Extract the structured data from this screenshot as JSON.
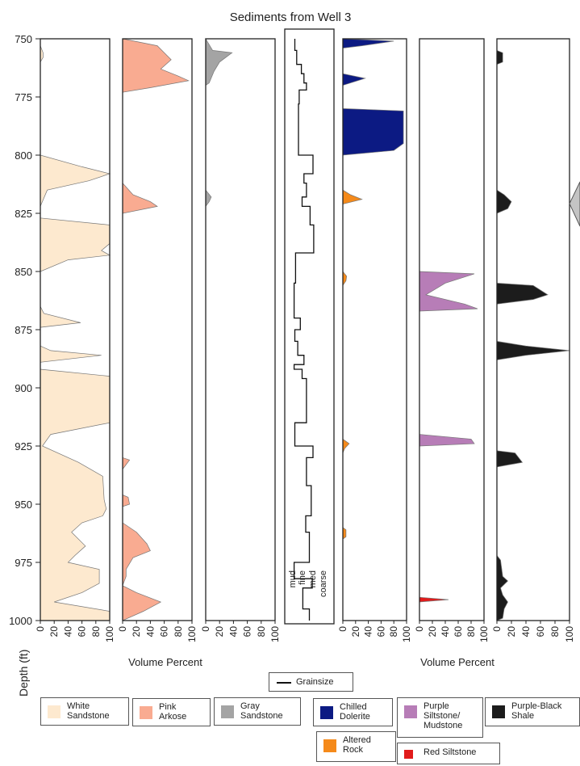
{
  "chart_data": {
    "type": "area",
    "title": "Sediments from Well 3",
    "ylabel": "Depth (ft)",
    "ylim": [
      750,
      1000
    ],
    "yticks": [
      "750",
      "775",
      "800",
      "825",
      "850",
      "875",
      "900",
      "925",
      "950",
      "975",
      "1000"
    ],
    "xlabel_left": "Volume Percent",
    "xlabel_right": "Volume Percent",
    "percent_ticks": [
      "0",
      "20",
      "40",
      "60",
      "80",
      "100"
    ],
    "grainsize_ticks": [
      "mud",
      "fine",
      "med",
      "coarse"
    ],
    "series": [
      {
        "name": "White Sandstone",
        "color": "#fde9cf",
        "points": [
          [
            750,
            0
          ],
          [
            753,
            0
          ],
          [
            756,
            4
          ],
          [
            758,
            4
          ],
          [
            760,
            0
          ],
          [
            800,
            0
          ],
          [
            805,
            60
          ],
          [
            808,
            100
          ],
          [
            811,
            70
          ],
          [
            815,
            10
          ],
          [
            822,
            0
          ],
          [
            827,
            0
          ],
          [
            830,
            100
          ],
          [
            838,
            100
          ],
          [
            841,
            88
          ],
          [
            843,
            100
          ],
          [
            845,
            40
          ],
          [
            850,
            0
          ],
          [
            865,
            0
          ],
          [
            868,
            5
          ],
          [
            872,
            58
          ],
          [
            874,
            0
          ],
          [
            882,
            0
          ],
          [
            884,
            15
          ],
          [
            886,
            88
          ],
          [
            889,
            0
          ],
          [
            892,
            0
          ],
          [
            895,
            100
          ],
          [
            915,
            100
          ],
          [
            920,
            15
          ],
          [
            925,
            3
          ],
          [
            932,
            55
          ],
          [
            938,
            90
          ],
          [
            948,
            92
          ],
          [
            952,
            95
          ],
          [
            955,
            90
          ],
          [
            958,
            60
          ],
          [
            962,
            45
          ],
          [
            968,
            65
          ],
          [
            972,
            50
          ],
          [
            975,
            40
          ],
          [
            978,
            85
          ],
          [
            984,
            85
          ],
          [
            988,
            60
          ],
          [
            992,
            20
          ],
          [
            996,
            100
          ],
          [
            1000,
            100
          ]
        ]
      },
      {
        "name": "Pink Arkose",
        "color": "#f9ab91",
        "points": [
          [
            750,
            0
          ],
          [
            753,
            50
          ],
          [
            756,
            60
          ],
          [
            759,
            70
          ],
          [
            763,
            55
          ],
          [
            766,
            80
          ],
          [
            768,
            95
          ],
          [
            771,
            40
          ],
          [
            773,
            0
          ],
          [
            812,
            0
          ],
          [
            817,
            15
          ],
          [
            820,
            40
          ],
          [
            822,
            50
          ],
          [
            825,
            0
          ],
          [
            930,
            0
          ],
          [
            931,
            10
          ],
          [
            933,
            5
          ],
          [
            935,
            0
          ],
          [
            946,
            0
          ],
          [
            947,
            8
          ],
          [
            950,
            10
          ],
          [
            951,
            0
          ],
          [
            958,
            0
          ],
          [
            962,
            20
          ],
          [
            967,
            35
          ],
          [
            970,
            40
          ],
          [
            973,
            15
          ],
          [
            978,
            5
          ],
          [
            981,
            5
          ],
          [
            985,
            0
          ],
          [
            988,
            20
          ],
          [
            992,
            55
          ],
          [
            996,
            30
          ],
          [
            1000,
            0
          ]
        ]
      },
      {
        "name": "Gray Sandstone",
        "color": "#a4a4a4",
        "points": [
          [
            750,
            0
          ],
          [
            755,
            10
          ],
          [
            756,
            38
          ],
          [
            760,
            20
          ],
          [
            764,
            12
          ],
          [
            769,
            5
          ],
          [
            770,
            0
          ],
          [
            815,
            0
          ],
          [
            818,
            8
          ],
          [
            820,
            5
          ],
          [
            822,
            0
          ]
        ]
      },
      {
        "name": "Chilled Dolerite",
        "color": "#0c1a83",
        "points": [
          [
            750,
            0
          ],
          [
            751,
            80
          ],
          [
            753,
            30
          ],
          [
            754,
            0
          ],
          [
            765,
            0
          ],
          [
            767,
            35
          ],
          [
            770,
            0
          ],
          [
            780,
            0
          ],
          [
            781,
            95
          ],
          [
            795,
            95
          ],
          [
            798,
            80
          ],
          [
            800,
            0
          ]
        ]
      },
      {
        "name": "Altered Rock",
        "color": "#f58a1a",
        "points": [
          [
            815,
            0
          ],
          [
            817,
            12
          ],
          [
            819,
            30
          ],
          [
            821,
            0
          ],
          [
            850,
            0
          ],
          [
            852,
            6
          ],
          [
            854,
            5
          ],
          [
            856,
            0
          ],
          [
            922,
            0
          ],
          [
            924,
            10
          ],
          [
            926,
            3
          ],
          [
            928,
            0
          ],
          [
            960,
            0
          ],
          [
            961,
            5
          ],
          [
            964,
            5
          ],
          [
            965,
            0
          ]
        ]
      },
      {
        "name": "Purple Siltstone/Mudstone",
        "color": "#b77db7",
        "points": [
          [
            850,
            0
          ],
          [
            851,
            85
          ],
          [
            855,
            40
          ],
          [
            860,
            10
          ],
          [
            864,
            70
          ],
          [
            866,
            90
          ],
          [
            867,
            0
          ],
          [
            920,
            0
          ],
          [
            922,
            80
          ],
          [
            924,
            85
          ],
          [
            925,
            0
          ]
        ]
      },
      {
        "name": "Red Siltstone",
        "color": "#e11b1b",
        "points": [
          [
            990,
            0
          ],
          [
            991,
            45
          ],
          [
            992,
            0
          ]
        ]
      },
      {
        "name": "Purple-Black Shale",
        "color": "#1c1c1c",
        "points": [
          [
            755,
            0
          ],
          [
            756,
            8
          ],
          [
            760,
            8
          ],
          [
            761,
            0
          ],
          [
            815,
            0
          ],
          [
            817,
            10
          ],
          [
            820,
            20
          ],
          [
            823,
            15
          ],
          [
            825,
            0
          ],
          [
            855,
            0
          ],
          [
            856,
            50
          ],
          [
            860,
            70
          ],
          [
            862,
            50
          ],
          [
            864,
            0
          ],
          [
            880,
            0
          ],
          [
            882,
            40
          ],
          [
            884,
            100
          ],
          [
            886,
            40
          ],
          [
            888,
            0
          ],
          [
            927,
            0
          ],
          [
            928,
            25
          ],
          [
            932,
            35
          ],
          [
            934,
            0
          ],
          [
            972,
            0
          ],
          [
            974,
            5
          ],
          [
            981,
            8
          ],
          [
            983,
            15
          ],
          [
            986,
            5
          ],
          [
            989,
            8
          ],
          [
            992,
            15
          ],
          [
            995,
            10
          ],
          [
            999,
            8
          ],
          [
            1000,
            0
          ]
        ]
      }
    ],
    "grainsize": {
      "name": "Grainsize",
      "profile": [
        [
          750,
          0.1
        ],
        [
          755,
          0.1
        ],
        [
          755,
          0.15
        ],
        [
          761,
          0.15
        ],
        [
          761,
          0.28
        ],
        [
          765,
          0.28
        ],
        [
          765,
          0.35
        ],
        [
          769,
          0.35
        ],
        [
          769,
          0.42
        ],
        [
          772,
          0.42
        ],
        [
          772,
          0.22
        ],
        [
          778,
          0.22
        ],
        [
          778,
          0.2
        ],
        [
          800,
          0.2
        ],
        [
          800,
          0.6
        ],
        [
          808,
          0.6
        ],
        [
          808,
          0.35
        ],
        [
          812,
          0.35
        ],
        [
          812,
          0.42
        ],
        [
          818,
          0.42
        ],
        [
          818,
          0.3
        ],
        [
          822,
          0.3
        ],
        [
          822,
          0.52
        ],
        [
          830,
          0.52
        ],
        [
          830,
          0.62
        ],
        [
          842,
          0.62
        ],
        [
          842,
          0.12
        ],
        [
          855,
          0.12
        ],
        [
          855,
          0.08
        ],
        [
          870,
          0.08
        ],
        [
          870,
          0.25
        ],
        [
          875,
          0.25
        ],
        [
          875,
          0.1
        ],
        [
          880,
          0.1
        ],
        [
          880,
          0.18
        ],
        [
          886,
          0.18
        ],
        [
          886,
          0.35
        ],
        [
          890,
          0.35
        ],
        [
          890,
          0.08
        ],
        [
          892,
          0.08
        ],
        [
          892,
          0.3
        ],
        [
          896,
          0.3
        ],
        [
          896,
          0.42
        ],
        [
          915,
          0.42
        ],
        [
          915,
          0.1
        ],
        [
          925,
          0.1
        ],
        [
          925,
          0.6
        ],
        [
          930,
          0.6
        ],
        [
          930,
          0.42
        ],
        [
          942,
          0.42
        ],
        [
          942,
          0.55
        ],
        [
          955,
          0.55
        ],
        [
          955,
          0.4
        ],
        [
          962,
          0.4
        ],
        [
          962,
          0.5
        ],
        [
          975,
          0.5
        ],
        [
          975,
          0.08
        ],
        [
          982,
          0.08
        ],
        [
          982,
          0.58
        ],
        [
          986,
          0.58
        ],
        [
          986,
          0.32
        ],
        [
          995,
          0.32
        ],
        [
          995,
          0.5
        ],
        [
          1000,
          0.5
        ]
      ]
    }
  },
  "legend": {
    "grainsize": "Grainsize",
    "white_sandstone": "White\nSandstone",
    "pink_arkose": "Pink\nArkose",
    "gray_sandstone": "Gray\nSandstone",
    "chilled_dolerite": "Chilled\nDolerite",
    "purple_siltstone": "Purple\nSiltstone/\nMudstone",
    "purple_black_shale": "Purple-Black\nShale",
    "altered_rock": "Altered\nRock",
    "red_siltstone": "Red Siltstone"
  }
}
